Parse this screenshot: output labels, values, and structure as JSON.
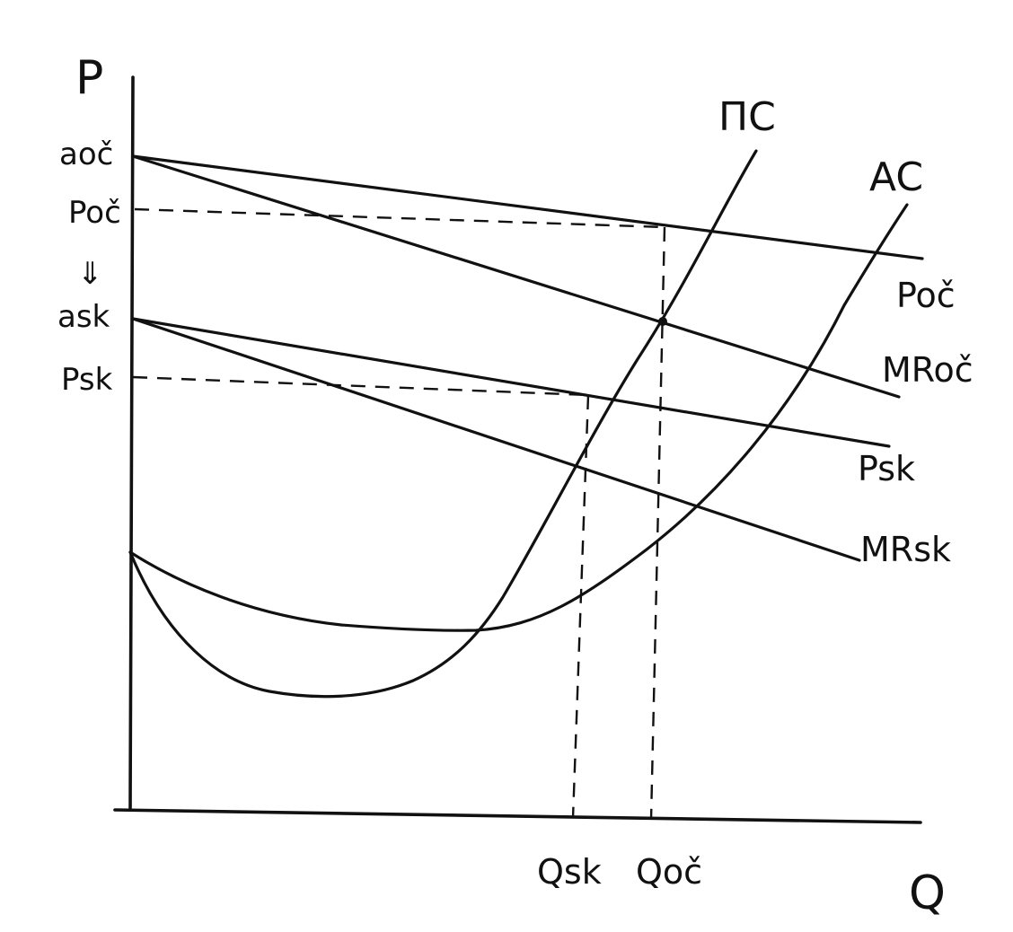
{
  "axes": {
    "y_label": "P",
    "x_label": "Q"
  },
  "y_ticks": {
    "a_oc": "aoč",
    "p_oc": "Poč",
    "arrow": "⇓",
    "a_sk": "ask",
    "p_sk": "Psk"
  },
  "x_ticks": {
    "q_sk": "Qsk",
    "q_oc": "Qoč"
  },
  "curves": {
    "mc": "ΠC",
    "ac": "AC",
    "p_oc": "Poč",
    "mr_oc": "MRoč",
    "p_sk": "Psk",
    "mr_sk": "MRsk"
  }
}
